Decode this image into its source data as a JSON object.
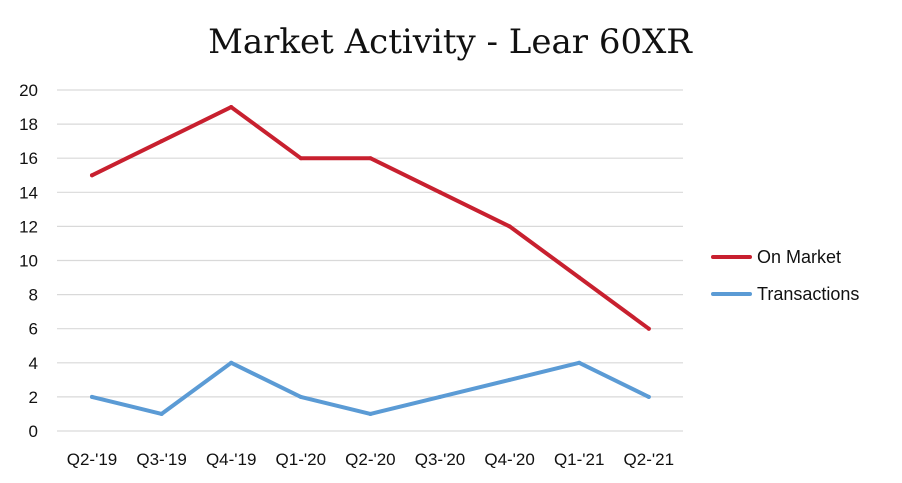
{
  "chart_data": {
    "type": "line",
    "title": "Market Activity - Lear 60XR",
    "categories": [
      "Q2-'19",
      "Q3-'19",
      "Q4-'19",
      "Q1-'20",
      "Q2-'20",
      "Q3-'20",
      "Q4-'20",
      "Q1-'21",
      "Q2-'21"
    ],
    "y_ticks": [
      "0",
      "2",
      "4",
      "6",
      "8",
      "10",
      "12",
      "14",
      "16",
      "18",
      "20"
    ],
    "ylim": [
      0,
      20
    ],
    "grid": true,
    "legend_position": "right",
    "series": [
      {
        "name": "On Market",
        "color": "#c8202f",
        "values": [
          15,
          17,
          19,
          16,
          16,
          14,
          12,
          9,
          6
        ]
      },
      {
        "name": "Transactions",
        "color": "#5b9bd5",
        "values": [
          2,
          1,
          4,
          2,
          1,
          2,
          3,
          4,
          2
        ]
      }
    ]
  }
}
